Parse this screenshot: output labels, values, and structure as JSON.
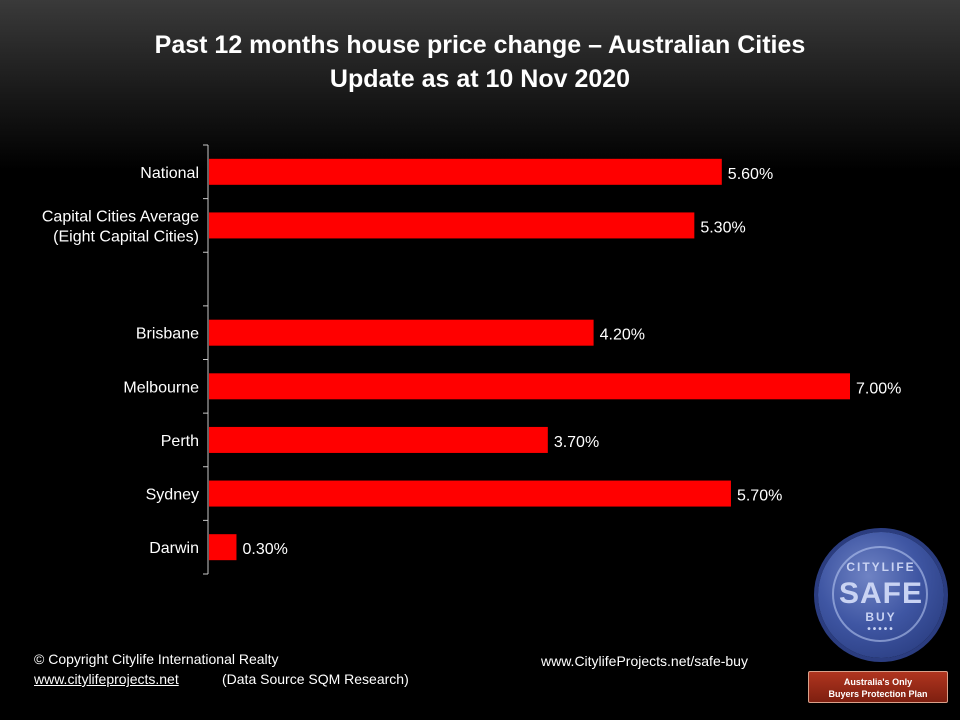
{
  "title": {
    "line1": "Past 12 months house price change – Australian Cities",
    "line2": "Update as at 10 Nov 2020"
  },
  "chart_data": {
    "type": "bar",
    "orientation": "horizontal",
    "categories": [
      [
        "National"
      ],
      [
        "Capital Cities Average",
        "(Eight Capital Cities)"
      ],
      [
        ""
      ],
      [
        "Brisbane"
      ],
      [
        "Melbourne"
      ],
      [
        "Perth"
      ],
      [
        "Sydney"
      ],
      [
        "Darwin"
      ]
    ],
    "values": [
      5.6,
      5.3,
      null,
      4.2,
      7.0,
      3.7,
      5.7,
      0.3
    ],
    "value_labels": [
      "5.60%",
      "5.30%",
      "",
      "4.20%",
      "7.00%",
      "3.70%",
      "5.70%",
      "0.30%"
    ],
    "xlim": [
      0,
      7.0
    ],
    "bar_color": "#ff0000",
    "grid": false,
    "legend": "none"
  },
  "footer": {
    "copyright": "© Copyright  Citylife International  Realty",
    "site_link": "www.citylifeprojects.net",
    "data_source": "(Data Source SQM Research)",
    "promo_url": "www.CitylifeProjects.net/safe-buy"
  },
  "badge": {
    "seal_top": "CITYLIFE",
    "seal_main": "SAFE",
    "seal_bottom": "BUY",
    "seal_dots": "•••••",
    "ribbon_line1": "Australia's Only",
    "ribbon_line2": "Buyers Protection Plan"
  }
}
